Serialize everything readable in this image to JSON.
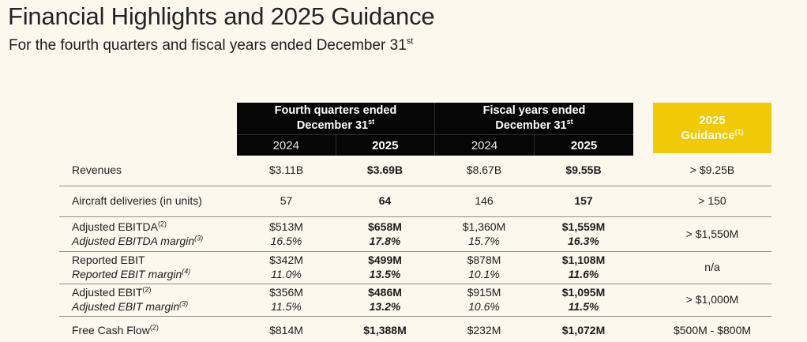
{
  "slide": {
    "title": "Financial Highlights and 2025 Guidance",
    "subtitle": "For the fourth quarters and fiscal years ended December 31",
    "subtitle_sup": "st",
    "colors": {
      "background": "#FCF8EE",
      "header_black": "#060606",
      "guidance_yellow": "#F0C907",
      "row_divider": "#918E86"
    }
  },
  "table": {
    "column_groups": [
      {
        "title_line1": "Fourth quarters ended",
        "title_line2": "December 31",
        "title_sup": "st",
        "year_2024": "2024",
        "year_2025": "2025"
      },
      {
        "title_line1": "Fiscal years ended",
        "title_line2": "December 31",
        "title_sup": "st",
        "year_2024": "2024",
        "year_2025": "2025"
      }
    ],
    "guidance_header": {
      "line1": "2025",
      "line2": "Guidance",
      "sup": "(1)"
    },
    "rows": [
      {
        "label": "Revenues",
        "label_sup": "",
        "sublabel": "",
        "sublabel_sup": "",
        "q4_2024": "$3.11B",
        "q4_2024_margin": "",
        "q4_2025": "$3.69B",
        "q4_2025_margin": "",
        "fy_2024": "$8.67B",
        "fy_2024_margin": "",
        "fy_2025": "$9.55B",
        "fy_2025_margin": "",
        "guidance": "> $9.25B"
      },
      {
        "label": "Aircraft deliveries (in units)",
        "label_sup": "",
        "sublabel": "",
        "sublabel_sup": "",
        "q4_2024": "57",
        "q4_2024_margin": "",
        "q4_2025": "64",
        "q4_2025_margin": "",
        "fy_2024": "146",
        "fy_2024_margin": "",
        "fy_2025": "157",
        "fy_2025_margin": "",
        "guidance": "> 150"
      },
      {
        "label": "Adjusted EBITDA",
        "label_sup": "(2)",
        "sublabel": "Adjusted EBITDA margin",
        "sublabel_sup": "(3)",
        "q4_2024": "$513M",
        "q4_2024_margin": "16.5%",
        "q4_2025": "$658M",
        "q4_2025_margin": "17.8%",
        "fy_2024": "$1,360M",
        "fy_2024_margin": "15.7%",
        "fy_2025": "$1,559M",
        "fy_2025_margin": "16.3%",
        "guidance": "> $1,550M"
      },
      {
        "label": "Reported EBIT",
        "label_sup": "",
        "sublabel": "Reported EBIT margin",
        "sublabel_sup": "(4)",
        "q4_2024": "$342M",
        "q4_2024_margin": "11.0%",
        "q4_2025": "$499M",
        "q4_2025_margin": "13.5%",
        "fy_2024": "$878M",
        "fy_2024_margin": "10.1%",
        "fy_2025": "$1,108M",
        "fy_2025_margin": "11.6%",
        "guidance": "n/a"
      },
      {
        "label": "Adjusted EBIT",
        "label_sup": "(2)",
        "sublabel": "Adjusted EBIT margin",
        "sublabel_sup": "(3)",
        "q4_2024": "$356M",
        "q4_2024_margin": "11.5%",
        "q4_2025": "$486M",
        "q4_2025_margin": "13.2%",
        "fy_2024": "$915M",
        "fy_2024_margin": "10.6%",
        "fy_2025": "$1,095M",
        "fy_2025_margin": "11.5%",
        "guidance": "> $1,000M"
      },
      {
        "label": "Free Cash Flow",
        "label_sup": "(2)",
        "sublabel": "",
        "sublabel_sup": "",
        "q4_2024": "$814M",
        "q4_2024_margin": "",
        "q4_2025": "$1,388M",
        "q4_2025_margin": "",
        "fy_2024": "$232M",
        "fy_2024_margin": "",
        "fy_2025": "$1,072M",
        "fy_2025_margin": "",
        "guidance": "$500M - $800M"
      }
    ]
  }
}
